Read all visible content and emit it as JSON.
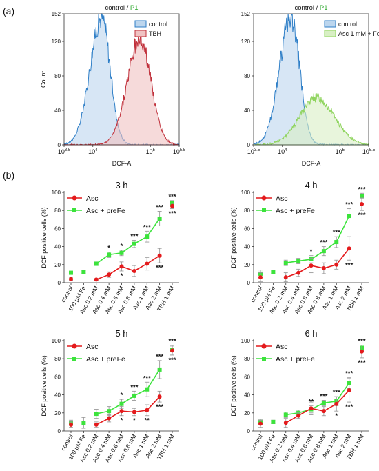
{
  "panel_labels": {
    "a": "(a)",
    "b": "(b)"
  },
  "colors": {
    "control": "#2f7fc7",
    "control_fill": "#bcd6ee",
    "tbh": "#c0303b",
    "tbh_fill": "#f0c2c2",
    "fe": "#8fd45e",
    "fe_fill": "#d8efc4",
    "asc": "#e41a1c",
    "prefe": "#3ce33c",
    "gate": "#2fa82f",
    "err": "#999999"
  },
  "chart_data": [
    {
      "type": "area",
      "title": {
        "pre": "control",
        "sep": " / ",
        "gate": "P1"
      },
      "xlabel": "DCF-A",
      "ylabel": "Count",
      "x_scale": "log10",
      "xlim": [
        3.5,
        5.5
      ],
      "ylim": [
        0,
        152
      ],
      "xticks": [
        {
          "v": 3.5,
          "base": "10",
          "exp": "3.5"
        },
        {
          "v": 4,
          "base": "10",
          "exp": "4"
        },
        {
          "v": 5,
          "base": "10",
          "exp": "5"
        },
        {
          "v": 5.5,
          "base": "10",
          "exp": "5.5"
        }
      ],
      "yticks": [
        0,
        40,
        80,
        120,
        152
      ],
      "legend": [
        "control",
        "TBH"
      ],
      "legend_position": "top-right",
      "series": [
        {
          "name": "control",
          "peak_log": 4.15,
          "peak": 148,
          "sigma_left": 0.2,
          "sigma_right": 0.15
        },
        {
          "name": "TBH",
          "peak_log": 4.82,
          "peak": 123,
          "sigma_left": 0.22,
          "sigma_right": 0.19
        }
      ]
    },
    {
      "type": "area",
      "title": {
        "pre": "control",
        "sep": " / ",
        "gate": "P1"
      },
      "xlabel": "DCF-A",
      "ylabel": "",
      "x_scale": "log10",
      "xlim": [
        3.5,
        5.5
      ],
      "ylim": [
        0,
        152
      ],
      "xticks": [
        {
          "v": 3.5,
          "base": "10",
          "exp": "3.5"
        },
        {
          "v": 4,
          "base": "10",
          "exp": "4"
        },
        {
          "v": 5,
          "base": "10",
          "exp": "5"
        },
        {
          "v": 5.5,
          "base": "10",
          "exp": "5.5"
        }
      ],
      "yticks": [
        0,
        40,
        80,
        120,
        152
      ],
      "legend": [
        "control",
        "Asc 1 mM + Fe"
      ],
      "legend_position": "top-right",
      "series": [
        {
          "name": "control",
          "peak_log": 4.15,
          "peak": 148,
          "sigma_left": 0.2,
          "sigma_right": 0.15
        },
        {
          "name": "Asc 1 mM + Fe",
          "peak_log": 4.6,
          "peak": 55,
          "sigma_left": 0.3,
          "sigma_right": 0.3
        }
      ]
    },
    {
      "type": "line",
      "title": "3 h",
      "ylabel": "DCF positive cells (%)",
      "ylim": [
        0,
        100
      ],
      "yticks": [
        0,
        20,
        40,
        60,
        80,
        100
      ],
      "categories": [
        "control",
        "100 μM Fe",
        "Asc 0.2 mM",
        "Asc 0.4 mM",
        "Asc 0.6 mM",
        "Asc 0.8 mM",
        "Asc 1 mM",
        "Asc 2 mM",
        "TBH 1 mM"
      ],
      "legend_position": "top-left",
      "series": [
        {
          "name": "Asc",
          "values": [
            4,
            null,
            3.5,
            9,
            18,
            13,
            21,
            30,
            85
          ],
          "errors": [
            1.5,
            null,
            1,
            3,
            5,
            6,
            7,
            8,
            3
          ]
        },
        {
          "name": "Asc + preFe",
          "values": [
            11,
            12,
            21,
            31,
            33,
            43,
            51,
            71,
            88
          ],
          "errors": [
            1.5,
            1.5,
            2,
            3,
            3,
            4,
            6,
            8,
            3
          ]
        }
      ],
      "annotations": [
        {
          "cat": 3,
          "pos": "above",
          "text": "*"
        },
        {
          "cat": 4,
          "pos": "above",
          "text": "*"
        },
        {
          "cat": 5,
          "pos": "above",
          "text": "***"
        },
        {
          "cat": 6,
          "pos": "above",
          "text": "***"
        },
        {
          "cat": 7,
          "pos": "above",
          "text": "***"
        },
        {
          "cat": 8,
          "pos": "above",
          "text": "***"
        },
        {
          "cat": 4,
          "pos": "below",
          "text": "*"
        },
        {
          "cat": 7,
          "pos": "below",
          "text": "***"
        },
        {
          "cat": 8,
          "pos": "below",
          "text": "***"
        }
      ]
    },
    {
      "type": "line",
      "title": "4 h",
      "ylabel": "DCF positive cells (%)",
      "ylim": [
        0,
        100
      ],
      "yticks": [
        0,
        20,
        40,
        60,
        80,
        100
      ],
      "categories": [
        "control",
        "100 μM Fe",
        "Asc 0.2 mM",
        "Asc 0.4 mM",
        "Asc 0.6 mM",
        "Asc 0.8 mM",
        "Asc 1 mM",
        "Asc 2 mM",
        "TBH 1 mM"
      ],
      "legend_position": "top-left",
      "series": [
        {
          "name": "Asc",
          "values": [
            6,
            null,
            6,
            11,
            19,
            16,
            20,
            38,
            87
          ],
          "errors": [
            5,
            null,
            5,
            4,
            8,
            6,
            5,
            13,
            7
          ]
        },
        {
          "name": "Asc + preFe",
          "values": [
            10,
            12,
            22,
            24,
            26,
            35,
            45,
            74,
            96
          ],
          "errors": [
            4,
            2,
            3,
            3,
            4,
            5,
            6,
            8,
            3
          ]
        }
      ],
      "annotations": [
        {
          "cat": 4,
          "pos": "above",
          "text": "*"
        },
        {
          "cat": 5,
          "pos": "above",
          "text": "***"
        },
        {
          "cat": 6,
          "pos": "above",
          "text": "***"
        },
        {
          "cat": 7,
          "pos": "above",
          "text": "***"
        },
        {
          "cat": 8,
          "pos": "above",
          "text": "***"
        },
        {
          "cat": 7,
          "pos": "below",
          "text": "***"
        },
        {
          "cat": 8,
          "pos": "below",
          "text": "***"
        }
      ]
    },
    {
      "type": "line",
      "title": "5 h",
      "ylabel": "DCF positive cells (%)",
      "ylim": [
        0,
        100
      ],
      "yticks": [
        0,
        20,
        40,
        60,
        80,
        100
      ],
      "categories": [
        "control",
        "100 μM Fe",
        "Asc 0.2 mM",
        "Asc 0.4 mM",
        "Asc 0.6 mM",
        "Asc 0.8 mM",
        "Asc 1 mM",
        "Asc 2 mM",
        "TBH 1 mM"
      ],
      "legend_position": "top-left",
      "series": [
        {
          "name": "Asc",
          "values": [
            7,
            null,
            7,
            14,
            22,
            21,
            23,
            38,
            89
          ],
          "errors": [
            3,
            null,
            3,
            4,
            5,
            4,
            6,
            6,
            5
          ]
        },
        {
          "name": "Asc + preFe",
          "values": [
            9,
            9,
            19,
            22,
            30,
            39,
            46,
            68,
            90
          ],
          "errors": [
            3,
            6,
            5,
            5,
            5,
            5,
            8,
            10,
            5
          ]
        }
      ],
      "annotations": [
        {
          "cat": 4,
          "pos": "above",
          "text": "*"
        },
        {
          "cat": 5,
          "pos": "above",
          "text": "***"
        },
        {
          "cat": 6,
          "pos": "above",
          "text": "***"
        },
        {
          "cat": 7,
          "pos": "above",
          "text": "***"
        },
        {
          "cat": 8,
          "pos": "above",
          "text": "***"
        },
        {
          "cat": 4,
          "pos": "below",
          "text": "*"
        },
        {
          "cat": 5,
          "pos": "below",
          "text": "*"
        },
        {
          "cat": 6,
          "pos": "below",
          "text": "**"
        },
        {
          "cat": 7,
          "pos": "below",
          "text": "***"
        },
        {
          "cat": 8,
          "pos": "below",
          "text": "***"
        }
      ]
    },
    {
      "type": "line",
      "title": "6 h",
      "ylabel": "DCF positive cells (%)",
      "ylim": [
        0,
        100
      ],
      "yticks": [
        0,
        20,
        40,
        60,
        80,
        100
      ],
      "categories": [
        "control",
        "100 μM Fe",
        "Asc 0.2 mM",
        "Asc 0.4 mM",
        "Asc 0.6 mM",
        "Asc 0.8 mM",
        "Asc 1 mM",
        "Asc 2 mM",
        "TBH 1 mM"
      ],
      "legend_position": "top-left",
      "series": [
        {
          "name": "Asc",
          "values": [
            8,
            null,
            9,
            17,
            25,
            22,
            30,
            45,
            88
          ],
          "errors": [
            4,
            null,
            5,
            3,
            7,
            5,
            8,
            13,
            7
          ]
        },
        {
          "name": "Asc + preFe",
          "values": [
            10,
            10,
            18,
            20,
            24,
            31,
            33,
            53,
            92
          ],
          "errors": [
            3,
            2,
            3,
            3,
            4,
            3,
            5,
            6,
            3
          ]
        }
      ],
      "annotations": [
        {
          "cat": 4,
          "pos": "above",
          "text": "**"
        },
        {
          "cat": 5,
          "pos": "above",
          "text": "***"
        },
        {
          "cat": 6,
          "pos": "above",
          "text": "***"
        },
        {
          "cat": 7,
          "pos": "above",
          "text": "***"
        },
        {
          "cat": 8,
          "pos": "above",
          "text": "***"
        },
        {
          "cat": 6,
          "pos": "below",
          "text": "*"
        },
        {
          "cat": 7,
          "pos": "below",
          "text": "***"
        },
        {
          "cat": 8,
          "pos": "below",
          "text": "***"
        }
      ]
    }
  ]
}
